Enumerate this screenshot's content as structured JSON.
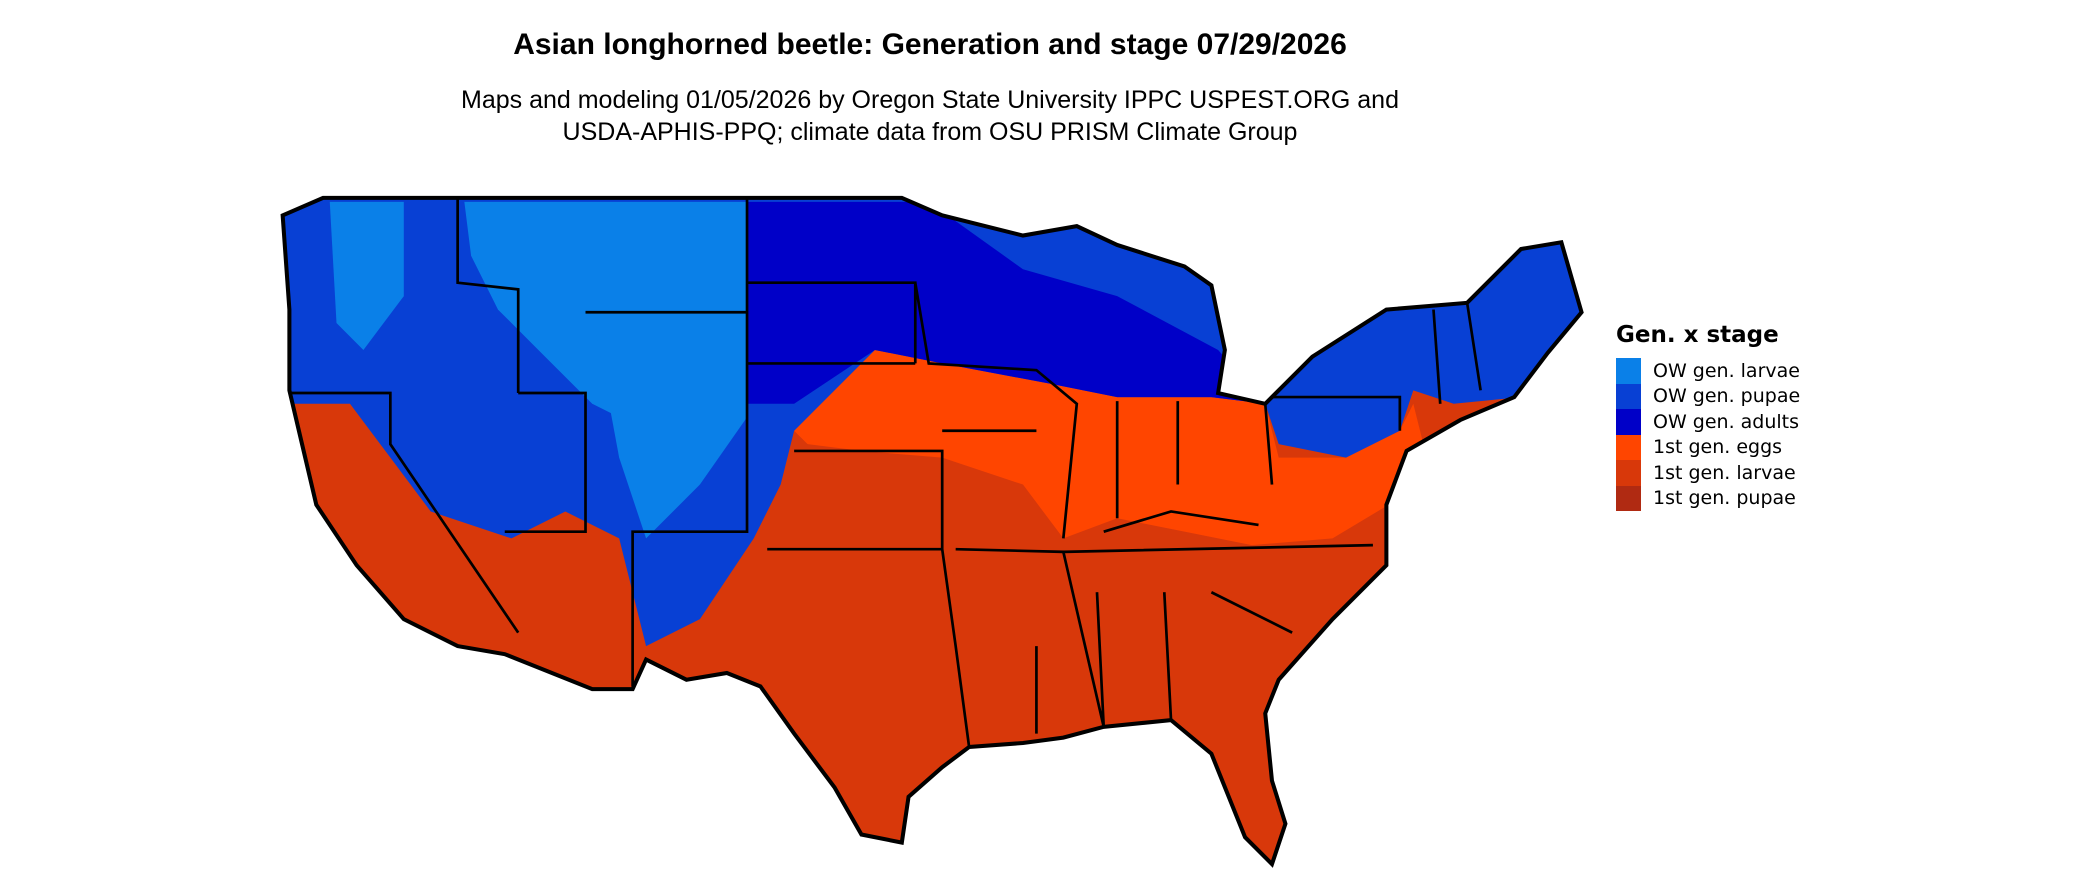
{
  "title": "Asian longhorned beetle: Generation and stage 07/29/2026",
  "subtitle": {
    "line1": "Maps and modeling 01/05/2026 by Oregon State University IPPC USPEST.ORG and",
    "line2": "USDA-APHIS-PPQ; climate data from OSU PRISM Climate Group"
  },
  "legend": {
    "title": "Gen. x stage",
    "items": [
      {
        "label": "OW gen. larvae",
        "color": "#0a80e8"
      },
      {
        "label": "OW gen. pupae",
        "color": "#0840d4"
      },
      {
        "label": "OW gen. adults",
        "color": "#0000c8"
      },
      {
        "label": "1st gen. eggs",
        "color": "#ff4500"
      },
      {
        "label": "1st gen. larvae",
        "color": "#d8380a"
      },
      {
        "label": "1st gen. pupae",
        "color": "#b02a12"
      }
    ]
  }
}
